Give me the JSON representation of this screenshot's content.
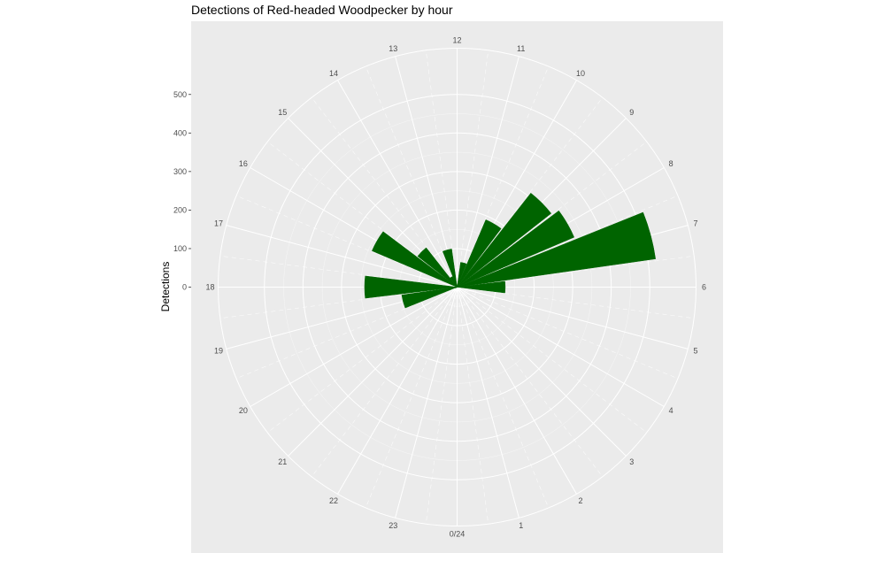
{
  "chart_data": {
    "type": "bar",
    "coord": "polar",
    "title": "Detections of Red-headed Woodpecker by hour",
    "xlabel": "",
    "ylabel": "Detections",
    "categories": [
      0,
      1,
      2,
      3,
      4,
      5,
      6,
      7,
      8,
      9,
      10,
      11,
      12,
      13,
      14,
      15,
      16,
      17,
      18,
      19,
      20,
      21,
      22,
      23
    ],
    "hour_tick_labels": [
      "0/24",
      "1",
      "2",
      "3",
      "4",
      "5",
      "6",
      "7",
      "8",
      "9",
      "10",
      "11",
      "12",
      "13",
      "14",
      "15",
      "16",
      "17",
      "18",
      "19",
      "20",
      "21",
      "22",
      "23"
    ],
    "values": [
      0,
      0,
      0,
      0,
      0,
      0,
      125,
      520,
      330,
      310,
      190,
      65,
      0,
      100,
      30,
      130,
      240,
      0,
      240,
      145,
      5,
      0,
      0,
      0
    ],
    "ylim": [
      0,
      620
    ],
    "yticks": [
      0,
      100,
      200,
      300,
      400,
      500
    ],
    "ytick_labels": [
      "0",
      "100",
      "200",
      "300",
      "400",
      "500"
    ],
    "bar_color": "#006400",
    "panel_background": "#ebebeb",
    "grid_color": "#ffffff",
    "grid": true,
    "legend": "none"
  }
}
